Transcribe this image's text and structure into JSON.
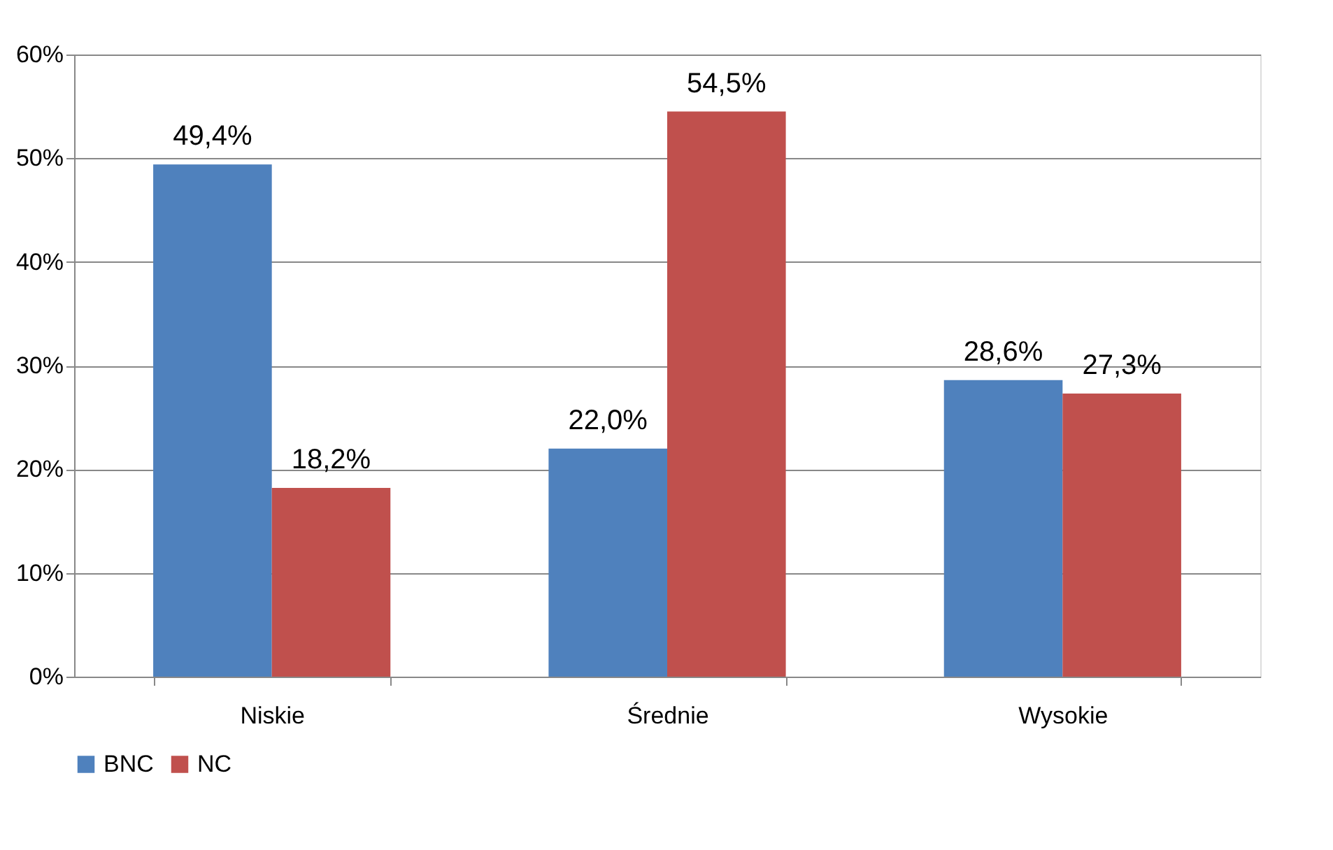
{
  "chart_data": {
    "type": "bar",
    "categories": [
      "Niskie",
      "Średnie",
      "Wysokie"
    ],
    "series": [
      {
        "name": "BNC",
        "color": "#4f81bd",
        "values": [
          49.4,
          22.0,
          28.6
        ],
        "value_labels": [
          "49,4%",
          "22,0%",
          "28,6%"
        ]
      },
      {
        "name": "NC",
        "color": "#c0504d",
        "values": [
          18.2,
          54.5,
          27.3
        ],
        "value_labels": [
          "18,2%",
          "54,5%",
          "27,3%"
        ]
      }
    ],
    "ylim": [
      0,
      60
    ],
    "yticks": [
      {
        "value": 0,
        "label": "0%"
      },
      {
        "value": 10,
        "label": "10%"
      },
      {
        "value": 20,
        "label": "20%"
      },
      {
        "value": 30,
        "label": "30%"
      },
      {
        "value": 40,
        "label": "40%"
      },
      {
        "value": 50,
        "label": "50%"
      },
      {
        "value": 60,
        "label": "60%"
      }
    ],
    "grid": "y",
    "legend": "bottom"
  }
}
